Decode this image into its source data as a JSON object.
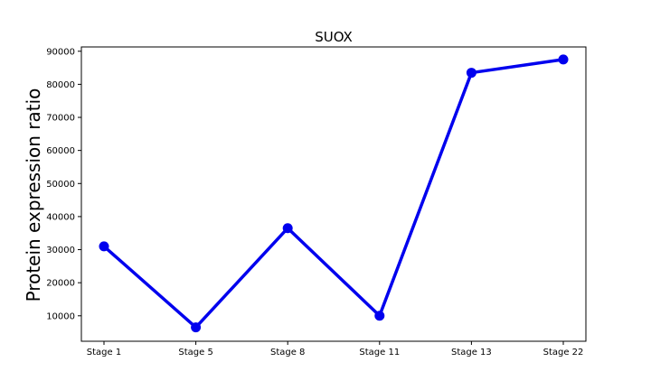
{
  "chart_data": {
    "type": "line",
    "title": "SUOX",
    "xlabel": "",
    "ylabel": "Protein expression ratio",
    "categories": [
      "Stage 1",
      "Stage 5",
      "Stage 8",
      "Stage 11",
      "Stage 13",
      "Stage 22"
    ],
    "series": [
      {
        "values": [
          31000,
          6500,
          36500,
          10000,
          83500,
          87500
        ],
        "color": "#0000ee"
      }
    ],
    "yticks": [
      10000,
      20000,
      30000,
      40000,
      50000,
      60000,
      70000,
      80000,
      90000
    ],
    "ylim": [
      2300,
      91300
    ],
    "grid": false,
    "legend": "none"
  }
}
